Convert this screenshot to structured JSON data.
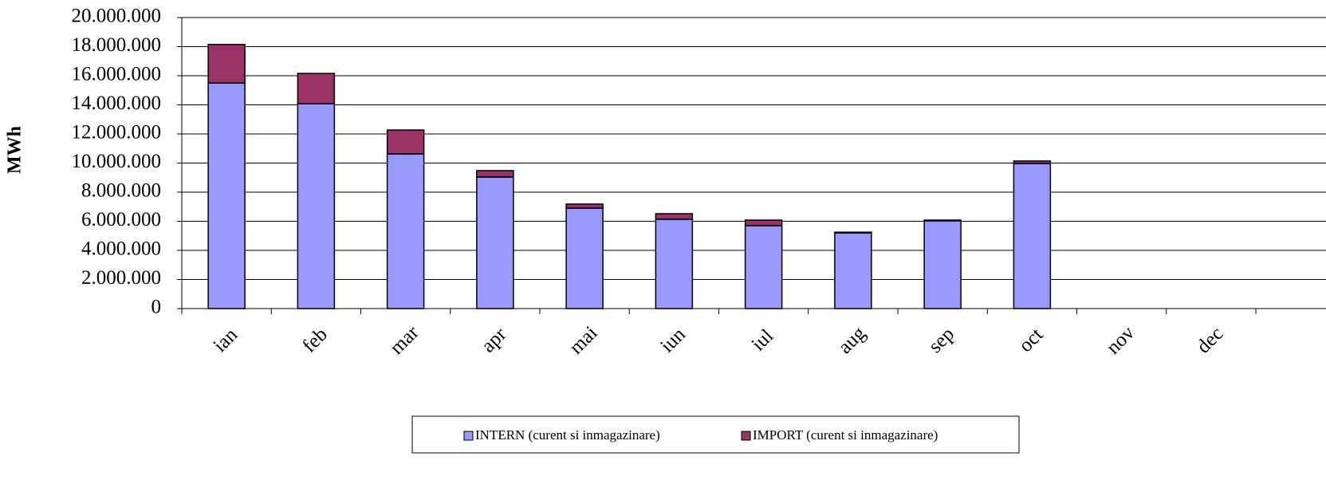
{
  "chart_data": {
    "type": "stacked_bar",
    "y_label": "MWh",
    "categories": [
      "ian",
      "feb",
      "mar",
      "apr",
      "mai",
      "iun",
      "iul",
      "aug",
      "sep",
      "oct",
      "nov",
      "dec"
    ],
    "series": [
      {
        "name": "INTERN (curent si inmagazinare)",
        "color": "#9999ff",
        "values": [
          15500000,
          14080000,
          10630000,
          9040000,
          6900000,
          6140000,
          5700000,
          5200000,
          6030000,
          9970000,
          null,
          null
        ]
      },
      {
        "name": "IMPORT (curent si inmagazinare)",
        "color": "#993366",
        "values": [
          2650000,
          2080000,
          1640000,
          440000,
          280000,
          380000,
          380000,
          50000,
          50000,
          170000,
          null,
          null
        ]
      }
    ],
    "ylim": [
      0,
      20000000
    ],
    "yticks": [
      0,
      {
        "value": 2000000,
        "label": "2.000.000"
      },
      {
        "value": 4000000,
        "label": "4.000.000"
      },
      {
        "value": 6000000,
        "label": "6.000.000"
      },
      {
        "value": 8000000,
        "label": "8.000.000"
      },
      {
        "value": 10000000,
        "label": "10.000.000"
      },
      {
        "value": 12000000,
        "label": "12.000.000"
      },
      {
        "value": 14000000,
        "label": "14.000.000"
      },
      {
        "value": 16000000,
        "label": "16.000.000"
      },
      {
        "value": 18000000,
        "label": "18.000.000"
      },
      {
        "value": 20000000,
        "label": "20.000.000"
      }
    ],
    "grid": true,
    "legend": "bottom"
  }
}
